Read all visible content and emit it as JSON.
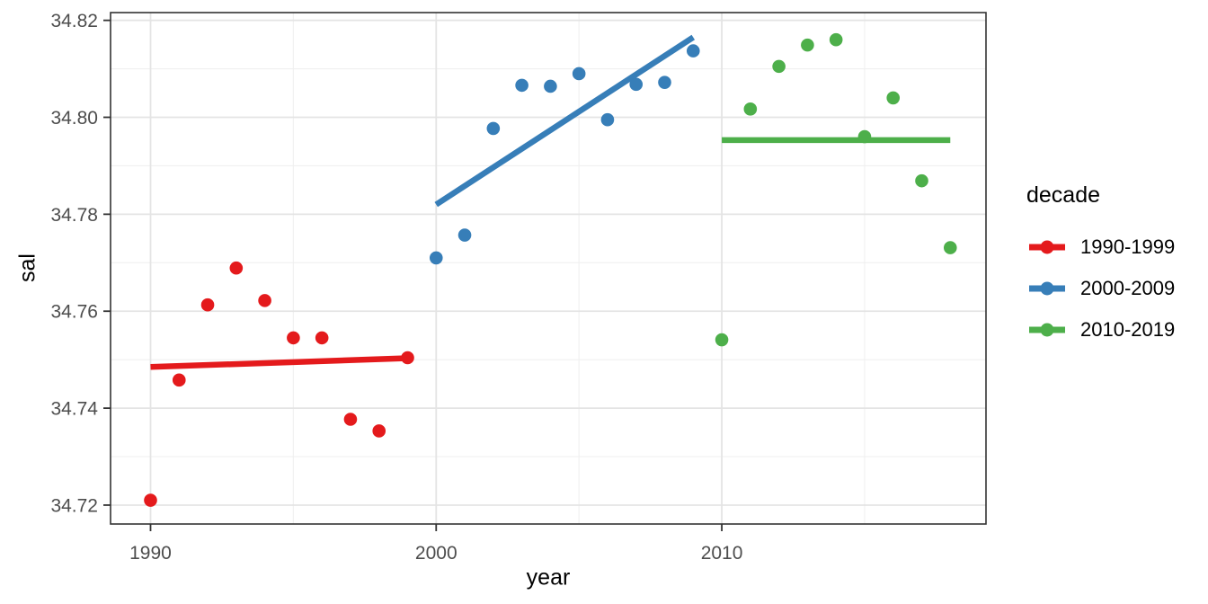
{
  "chart_data": {
    "type": "scatter",
    "title": "",
    "xlabel": "year",
    "ylabel": "sal",
    "legend_title": "decade",
    "legend_position": "right",
    "grid": true,
    "background": "#FFFFFF",
    "panel_border_color": "#333333",
    "grid_major_color": "#E4E4E4",
    "grid_minor_color": "#F0F0F0",
    "tick_color": "#333333",
    "tick_label_color": "#4D4D4D",
    "point_radius": 7.3,
    "line_width": 6.5,
    "x_domain": [
      1988.6,
      2019.25
    ],
    "y_domain": [
      34.7161,
      34.8216
    ],
    "x_ticks": {
      "values": [
        1990,
        2000,
        2010
      ],
      "labels": [
        "1990",
        "2000",
        "2010"
      ],
      "minor": [
        1995,
        2005,
        2015
      ]
    },
    "y_ticks": {
      "values": [
        34.72,
        34.74,
        34.76,
        34.78,
        34.8,
        34.82
      ],
      "labels": [
        "34.72",
        "34.74",
        "34.76",
        "34.78",
        "34.80",
        "34.82"
      ],
      "minor": [
        34.73,
        34.75,
        34.77,
        34.79,
        34.81
      ]
    },
    "series": [
      {
        "name": "1990-1999",
        "color": "#E41A1C",
        "points": [
          [
            1990,
            34.721
          ],
          [
            1991,
            34.7458
          ],
          [
            1992,
            34.7613
          ],
          [
            1993,
            34.7689
          ],
          [
            1994,
            34.7622
          ],
          [
            1995,
            34.7545
          ],
          [
            1996,
            34.7545
          ],
          [
            1997,
            34.7377
          ],
          [
            1998,
            34.7353
          ],
          [
            1999,
            34.7504
          ]
        ],
        "trend": [
          [
            1990,
            34.7485
          ],
          [
            1999,
            34.7503
          ]
        ]
      },
      {
        "name": "2000-2009",
        "color": "#377EB8",
        "points": [
          [
            2000,
            34.771
          ],
          [
            2001,
            34.7757
          ],
          [
            2002,
            34.7977
          ],
          [
            2003,
            34.8066
          ],
          [
            2004,
            34.8064
          ],
          [
            2005,
            34.809
          ],
          [
            2006,
            34.7995
          ],
          [
            2007,
            34.8068
          ],
          [
            2008,
            34.8072
          ],
          [
            2009,
            34.8137
          ]
        ],
        "trend": [
          [
            2000,
            34.782
          ],
          [
            2009,
            34.8165
          ]
        ]
      },
      {
        "name": "2010-2019",
        "color": "#4DAF4A",
        "points": [
          [
            2010,
            34.7541
          ],
          [
            2011,
            34.8017
          ],
          [
            2012,
            34.8105
          ],
          [
            2013,
            34.8149
          ],
          [
            2014,
            34.816
          ],
          [
            2015,
            34.796
          ],
          [
            2016,
            34.804
          ],
          [
            2017,
            34.7869
          ],
          [
            2018,
            34.7731
          ]
        ],
        "trend": [
          [
            2010,
            34.7953
          ],
          [
            2018,
            34.7953
          ]
        ]
      }
    ]
  }
}
